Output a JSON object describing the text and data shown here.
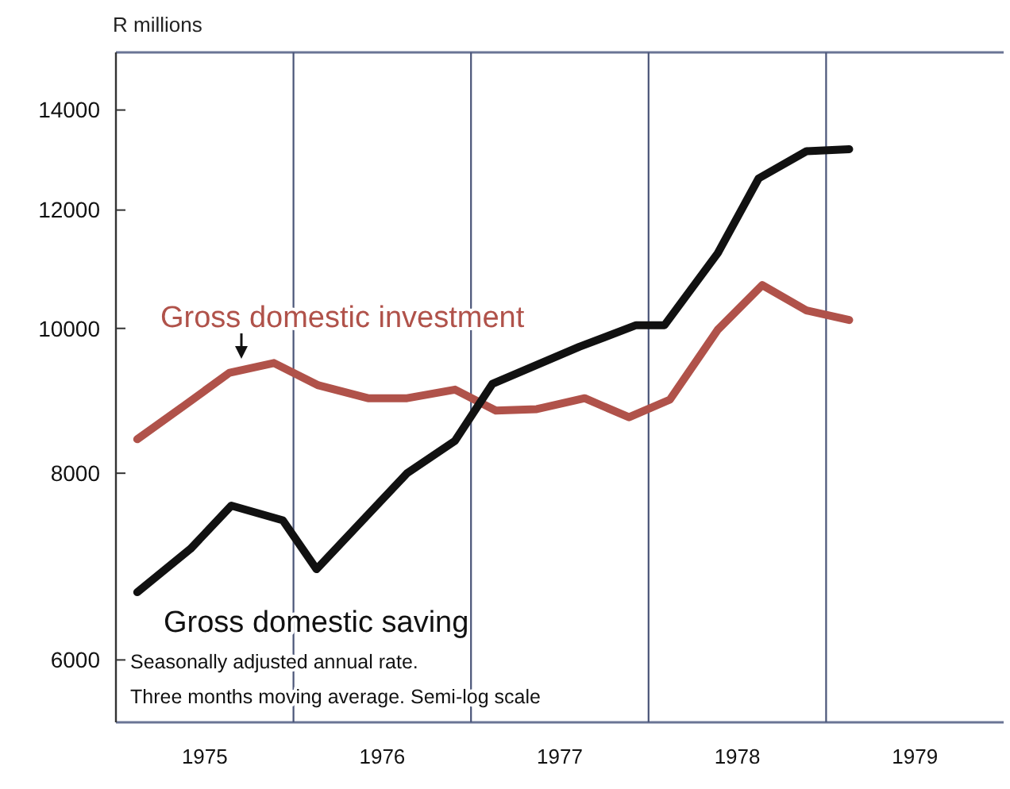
{
  "chart_data": {
    "type": "line",
    "ylabel": "R millions",
    "log": "y",
    "grid": "x",
    "legend": false,
    "line_style": "solid",
    "marker": "none",
    "xlim": [
      1975,
      1980
    ],
    "ylim": [
      5450,
      15300
    ],
    "xticks": [
      {
        "value": 1975.5,
        "label": "1975"
      },
      {
        "value": 1976,
        "label": null
      },
      {
        "value": 1976.5,
        "label": "1976"
      },
      {
        "value": 1977,
        "label": null
      },
      {
        "value": 1977.5,
        "label": "1977"
      },
      {
        "value": 1978,
        "label": null
      },
      {
        "value": 1978.5,
        "label": "1978"
      },
      {
        "value": 1979,
        "label": null
      },
      {
        "value": 1979.5,
        "label": "1979"
      }
    ],
    "yticks": [
      6000,
      8000,
      10000,
      12000,
      14000
    ],
    "series": [
      {
        "name": "Gross domestic investment",
        "color": "#b0524a",
        "x": [
          1975.12,
          1975.38,
          1975.64,
          1975.89,
          1976.14,
          1976.42,
          1976.64,
          1976.91,
          1977.14,
          1977.37,
          1977.64,
          1977.89,
          1978.12,
          1978.39,
          1978.64,
          1978.89,
          1979.13
        ],
        "values": [
          8430,
          8870,
          9340,
          9480,
          9160,
          8980,
          8980,
          9100,
          8810,
          8830,
          8980,
          8720,
          8960,
          9980,
          10690,
          10280,
          10130
        ]
      },
      {
        "name": "Gross domestic saving",
        "color": "#111111",
        "x": [
          1975.12,
          1975.42,
          1975.65,
          1975.94,
          1976.13,
          1976.64,
          1976.91,
          1977.12,
          1977.61,
          1977.93,
          1978.09,
          1978.39,
          1978.62,
          1978.89,
          1979.13
        ],
        "values": [
          6660,
          7120,
          7610,
          7440,
          6900,
          8000,
          8410,
          9180,
          9720,
          10050,
          10050,
          11230,
          12600,
          13140,
          13180
        ]
      }
    ],
    "annotations": [
      "Seasonally adjusted annual rate.",
      "Three months moving average. Semi-log scale"
    ]
  }
}
